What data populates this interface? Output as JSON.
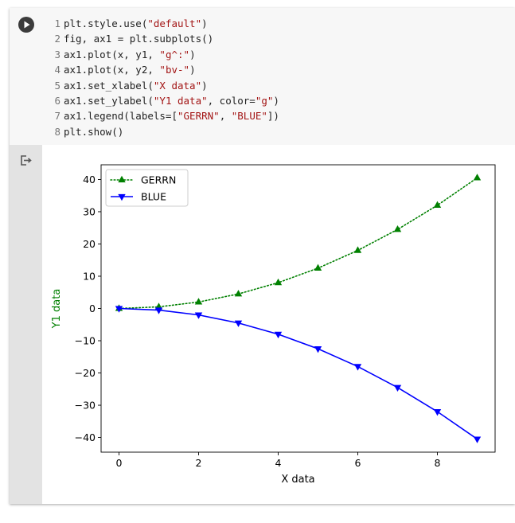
{
  "code_cell": {
    "lines": [
      {
        "n": "1",
        "parts": [
          {
            "t": "plt.style.use("
          },
          {
            "t": "\"default\"",
            "s": true
          },
          {
            "t": ")"
          }
        ]
      },
      {
        "n": "2",
        "parts": [
          {
            "t": "fig, ax1 = plt.subplots()"
          }
        ]
      },
      {
        "n": "3",
        "parts": [
          {
            "t": "ax1.plot(x, y1, "
          },
          {
            "t": "\"g^:\"",
            "s": true
          },
          {
            "t": ")"
          }
        ]
      },
      {
        "n": "4",
        "parts": [
          {
            "t": "ax1.plot(x, y2, "
          },
          {
            "t": "\"bv-\"",
            "s": true
          },
          {
            "t": ")"
          }
        ]
      },
      {
        "n": "5",
        "parts": [
          {
            "t": "ax1.set_xlabel("
          },
          {
            "t": "\"X data\"",
            "s": true
          },
          {
            "t": ")"
          }
        ]
      },
      {
        "n": "6",
        "parts": [
          {
            "t": "ax1.set_ylabel("
          },
          {
            "t": "\"Y1 data\"",
            "s": true
          },
          {
            "t": ", color="
          },
          {
            "t": "\"g\"",
            "s": true
          },
          {
            "t": ")"
          }
        ]
      },
      {
        "n": "7",
        "parts": [
          {
            "t": "ax1.legend(labels=["
          },
          {
            "t": "\"GERRN\"",
            "s": true
          },
          {
            "t": ", "
          },
          {
            "t": "\"BLUE\"",
            "s": true
          },
          {
            "t": "])"
          }
        ]
      },
      {
        "n": "8",
        "parts": [
          {
            "t": "plt.show()"
          }
        ]
      }
    ],
    "run_icon": "play-icon",
    "output_icon": "output-redirect-icon"
  },
  "chart_data": {
    "type": "line",
    "x": [
      0,
      1,
      2,
      3,
      4,
      5,
      6,
      7,
      8,
      9
    ],
    "series": [
      {
        "name": "GERRN",
        "values": [
          0,
          0.5,
          2,
          4.5,
          8,
          12.5,
          18,
          24.5,
          32,
          40.5
        ],
        "color": "#008000",
        "marker": "triangle-up",
        "linestyle": "dotted"
      },
      {
        "name": "BLUE",
        "values": [
          0,
          -0.5,
          -2,
          -4.5,
          -8,
          -12.5,
          -18,
          -24.5,
          -32,
          -40.5
        ],
        "color": "#0000ff",
        "marker": "triangle-down",
        "linestyle": "solid"
      }
    ],
    "xlabel": "X data",
    "ylabel": "Y1 data",
    "ylabel_color": "#008000",
    "xlim": [
      -0.45,
      9.45
    ],
    "ylim": [
      -44.55,
      44.55
    ],
    "xticks": [
      0,
      2,
      4,
      6,
      8
    ],
    "yticks": [
      40,
      30,
      20,
      10,
      0,
      -10,
      -20,
      -30,
      -40
    ],
    "grid": false,
    "legend": "top-left"
  }
}
